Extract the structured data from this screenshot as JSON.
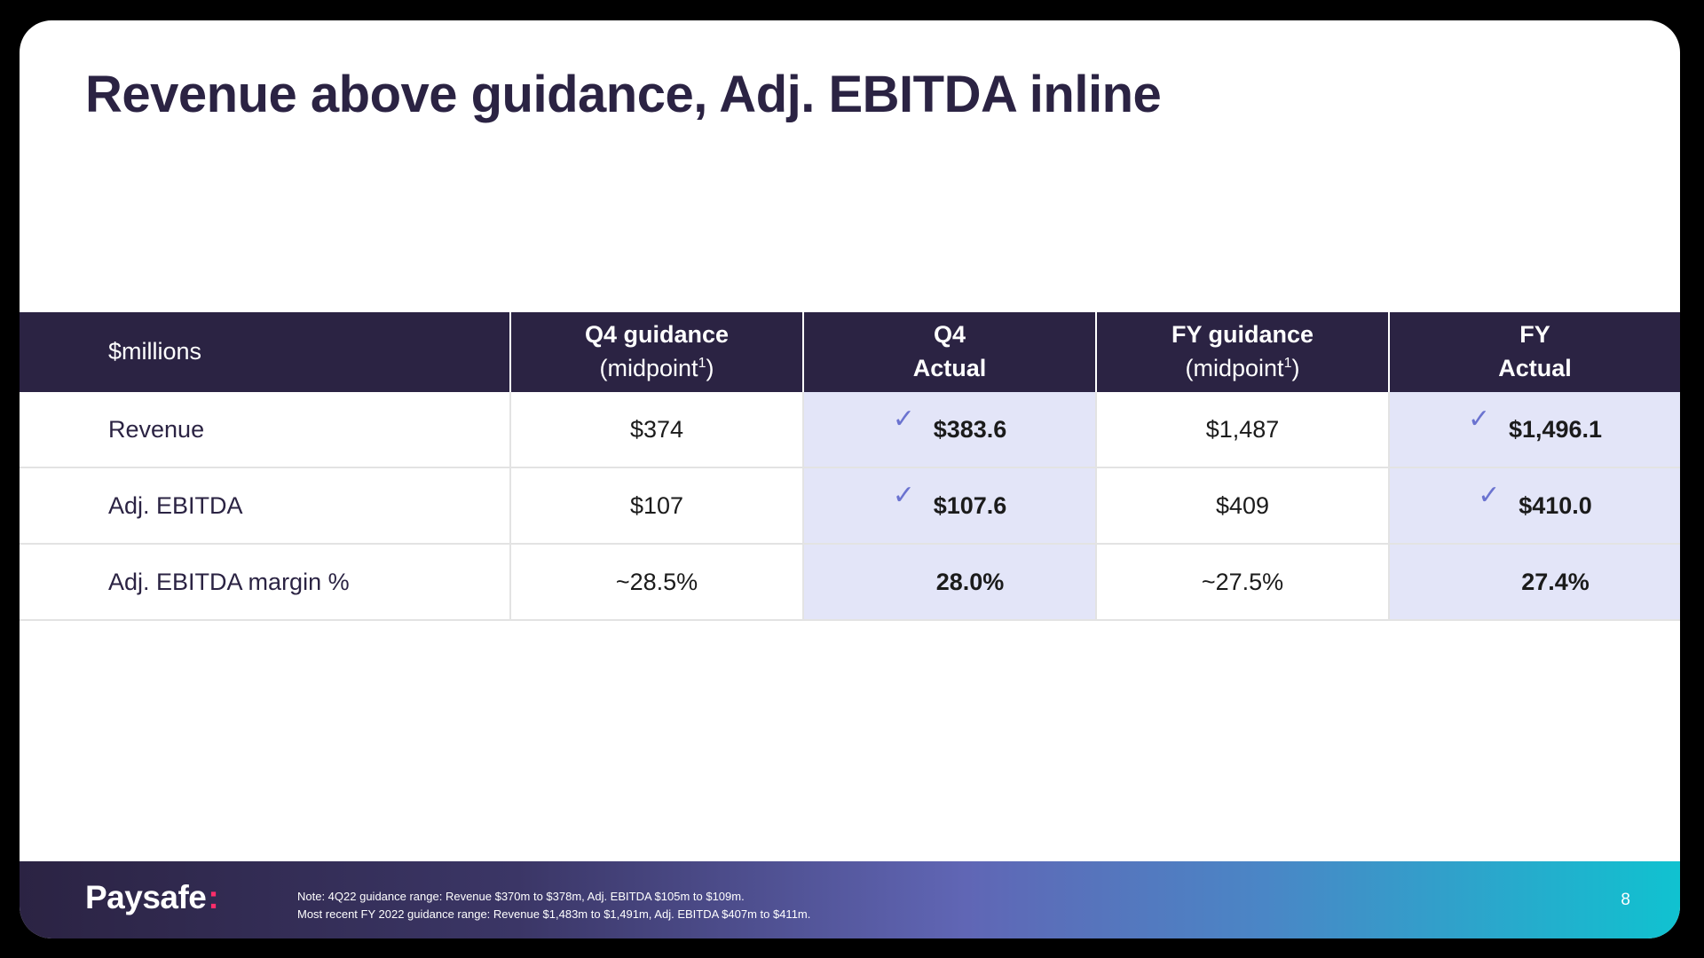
{
  "slide": {
    "title": "Revenue above guidance, Adj. EBITDA inline"
  },
  "table": {
    "headers": [
      {
        "bold": "",
        "light": "$millions",
        "sup": ""
      },
      {
        "bold": "Q4 guidance",
        "light": "(midpoint",
        "sup": "1",
        "close": ")"
      },
      {
        "bold": "Q4",
        "light": "Actual"
      },
      {
        "bold": "FY guidance",
        "light": "(midpoint",
        "sup": "1",
        "close": ")"
      },
      {
        "bold": "FY",
        "light": "Actual"
      }
    ],
    "rows": [
      {
        "label": "Revenue",
        "q4_guidance": "$374",
        "q4_actual": "$383.6",
        "q4_check": true,
        "fy_guidance": "$1,487",
        "fy_actual": "$1,496.1",
        "fy_check": true
      },
      {
        "label": "Adj. EBITDA",
        "q4_guidance": "$107",
        "q4_actual": "$107.6",
        "q4_check": true,
        "fy_guidance": "$409",
        "fy_actual": "$410.0",
        "fy_check": true
      },
      {
        "label": "Adj. EBITDA margin %",
        "q4_guidance": "~28.5%",
        "q4_actual": "28.0%",
        "q4_check": false,
        "fy_guidance": "~27.5%",
        "fy_actual": "27.4%",
        "fy_check": false
      }
    ],
    "check_glyph": "✓",
    "check_icon": "checkmark-icon",
    "header_color": "#2b2343",
    "highlight_color": "#e3e5f8",
    "check_color": "#6b73d0"
  },
  "footer": {
    "logo_text": "Paysafe",
    "logo_colon": ":",
    "logo_accent_color": "#ff2d6a",
    "note_line1": "Note: 4Q22 guidance range: Revenue $370m to $378m, Adj. EBITDA $105m to $109m.",
    "note_line2": "Most recent FY 2022 guidance range: Revenue $1,483m to $1,491m, Adj. EBITDA $407m to $411m.",
    "page_number": "8"
  }
}
